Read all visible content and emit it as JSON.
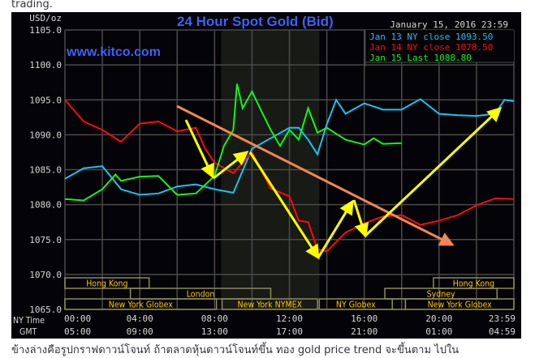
{
  "page": {
    "top_text": "trading.",
    "bottom_text": "ข้างล่างคือรูปกราฟดาวน์โจนท์ ถ้าตลาดหุ้นดาวน์โจนท์ขึ้น ทอง gold price trend จะขึ้นตาม ไปใน"
  },
  "chart_data": {
    "type": "line",
    "title": "24 Hour Spot Gold (Bid)",
    "watermark": "www.kitco.com",
    "timestamp": "January 15, 2016 23:59",
    "ylabel": "USD/oz",
    "ylim": [
      1065,
      1105
    ],
    "yticks": [
      "1105.0",
      "1100.0",
      "1095.0",
      "1090.0",
      "1085.0",
      "1080.0",
      "1075.0",
      "1070.0",
      "1065.0"
    ],
    "xlim_hours": [
      0,
      24
    ],
    "x_row_labels": {
      "ny": "NY Time",
      "gmt": "GMT"
    },
    "xticks_ny": [
      "00:00",
      "04:00",
      "08:00",
      "12:00",
      "16:00",
      "20:00",
      "23:59"
    ],
    "xticks_gmt": [
      "05:00",
      "09:00",
      "13:00",
      "17:00",
      "21:00",
      "01:00",
      "04:59"
    ],
    "grid": true,
    "legend_position": "top-right",
    "shaded_hours": [
      8.35,
      13.6
    ],
    "colors": {
      "title": "#3d63f5",
      "grid": "#4a4a4a",
      "session_border": "#8c8a5c",
      "session_text": "#ffc800",
      "shade": "#171a15",
      "annotation_arrow": "#ffff00",
      "trend_line": "#f2874f"
    },
    "series": [
      {
        "name": "Jan 13 NY close 1093.50",
        "color": "#19c3f5",
        "x": [
          0,
          1,
          2,
          3,
          4,
          5,
          6,
          7,
          8,
          9,
          10,
          11,
          12,
          12.5,
          13,
          13.5,
          14,
          14.5,
          15,
          16,
          17,
          18,
          19,
          20,
          21,
          22,
          23,
          23.5,
          24
        ],
        "y": [
          1083.7,
          1085.2,
          1085.5,
          1082.2,
          1081.4,
          1081.6,
          1082.6,
          1082.9,
          1082.2,
          1081.7,
          1088,
          1089.5,
          1091,
          1091,
          1089.3,
          1087.2,
          1091.5,
          1095,
          1093,
          1094.5,
          1093.6,
          1093.6,
          1095.1,
          1093,
          1092.8,
          1092.7,
          1093,
          1095,
          1094.8
        ]
      },
      {
        "name": "Jan 14 NY close 1078.50",
        "color": "#ff0a0a",
        "x": [
          0,
          1,
          2,
          3,
          4,
          5,
          6,
          7,
          7.5,
          8,
          9,
          10,
          11,
          12,
          12.5,
          13,
          13.5,
          14,
          15,
          16,
          17,
          18,
          19,
          20,
          21,
          22,
          23,
          24
        ],
        "y": [
          1095,
          1091.9,
          1090.7,
          1089,
          1091.6,
          1091.9,
          1090.5,
          1091,
          1088,
          1086,
          1084.5,
          1087.5,
          1082.3,
          1081.2,
          1077.7,
          1077.5,
          1073.6,
          1073.3,
          1076,
          1077.3,
          1078.3,
          1078.5,
          1077.1,
          1077.7,
          1078.5,
          1079.9,
          1080.9,
          1080.8
        ]
      },
      {
        "name": "Jan 15 Last 1088.80",
        "color": "#14f514",
        "x": [
          0,
          1,
          2,
          2.7,
          3,
          4,
          5,
          6,
          7,
          8,
          8.5,
          9,
          9.2,
          9.5,
          10,
          10.5,
          11,
          11.5,
          12,
          12.5,
          13,
          13.5,
          14,
          15,
          16,
          16.5,
          17,
          18
        ],
        "y": [
          1080.8,
          1080.6,
          1082.2,
          1084.3,
          1083.4,
          1084,
          1084.1,
          1081.4,
          1081.6,
          1084.1,
          1088.4,
          1090.7,
          1097.3,
          1093.8,
          1096.2,
          1093.4,
          1090.7,
          1088.4,
          1090.7,
          1089.3,
          1093.8,
          1090.3,
          1091,
          1089.3,
          1088.6,
          1089.5,
          1088.7,
          1088.8
        ]
      }
    ],
    "sessions": [
      {
        "label": "Hong Kong",
        "row": 0,
        "start": 0,
        "end": 4.5
      },
      {
        "label": "Hong Kong",
        "row": 0,
        "start": 19.7,
        "end": 24
      },
      {
        "label": "London",
        "row": 1,
        "start": 3.5,
        "end": 11
      },
      {
        "label": "Sydney",
        "row": 1,
        "start": 17.1,
        "end": 23.1
      },
      {
        "label": "New York Globex",
        "row": 2,
        "start": 0,
        "end": 8.1
      },
      {
        "label": "New York NYMEX",
        "row": 2,
        "start": 8.4,
        "end": 13.5
      },
      {
        "label": "NY Globex",
        "row": 2,
        "start": 13.6,
        "end": 17.5
      },
      {
        "label": "",
        "row": 2,
        "start": 17.5,
        "end": 18.2
      },
      {
        "label": "New York Globex",
        "row": 2,
        "start": 18.2,
        "end": 24
      }
    ]
  }
}
